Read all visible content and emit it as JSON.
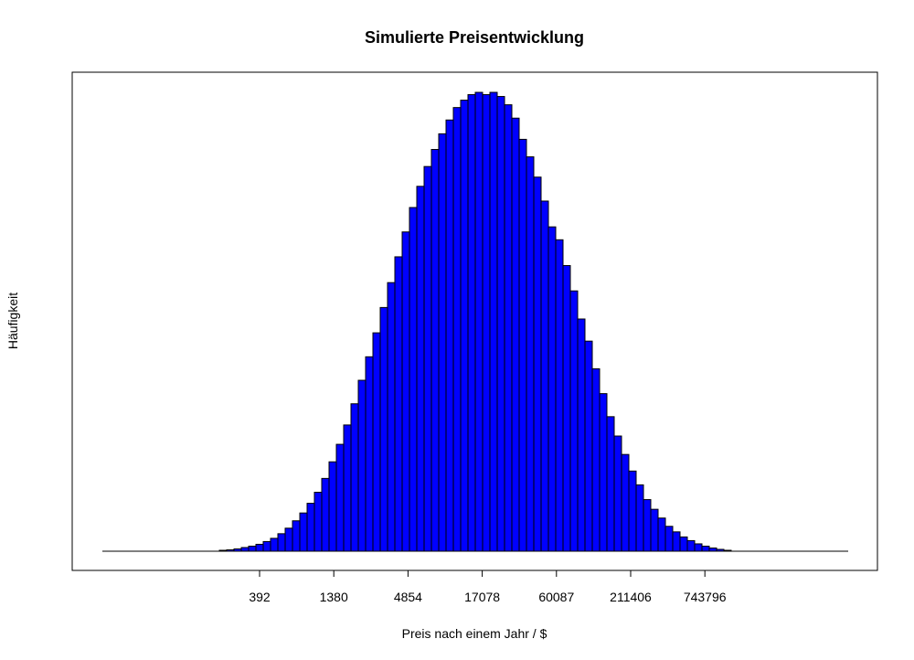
{
  "chart_data": {
    "type": "bar",
    "title": "Simulierte Preisentwicklung",
    "xlabel": "Preis nach einem Jahr / $",
    "ylabel": "Häufigkeit",
    "x_scale": "log",
    "x_tick_labels": [
      "392",
      "1380",
      "4854",
      "17078",
      "60087",
      "211406",
      "743796"
    ],
    "y_tick_labels": [],
    "grid": false,
    "legend": "none",
    "bar_color": "#0000FF",
    "bar_border_color": "#000000",
    "y_unit": "relative frequency (max = 100)",
    "values": [
      0.2,
      0.3,
      0.5,
      0.8,
      1.1,
      1.5,
      2.1,
      2.8,
      3.8,
      5.0,
      6.6,
      8.3,
      10.4,
      12.8,
      15.8,
      19.4,
      23.2,
      27.4,
      32.0,
      37.1,
      42.2,
      47.4,
      52.9,
      58.3,
      63.9,
      69.3,
      74.6,
      79.2,
      83.5,
      87.2,
      90.6,
      93.6,
      96.3,
      97.9,
      99.1,
      99.6,
      99.1,
      99.6,
      98.7,
      96.9,
      94.0,
      89.4,
      85.6,
      81.2,
      76.0,
      70.4,
      67.6,
      62.0,
      56.5,
      50.4,
      45.6,
      39.6,
      34.2,
      29.2,
      25.0,
      21.0,
      17.4,
      14.4,
      11.2,
      9.1,
      7.2,
      5.4,
      4.2,
      3.1,
      2.3,
      1.6,
      1.1,
      0.7,
      0.4,
      0.2
    ]
  }
}
